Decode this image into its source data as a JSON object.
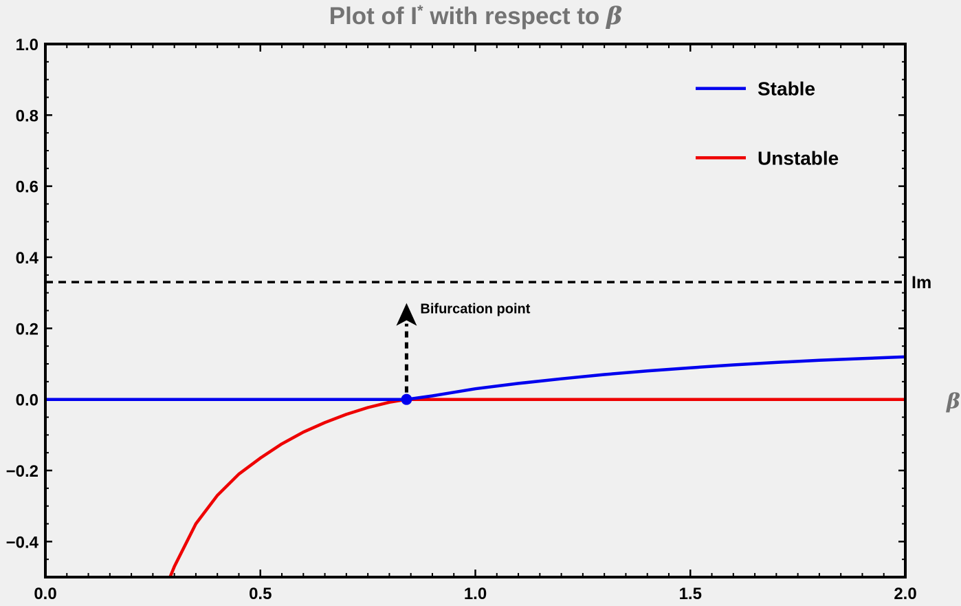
{
  "chart_data": {
    "type": "line",
    "title_prefix": "Plot of I",
    "title_sup": "*",
    "title_suffix": " with respect to ",
    "title_symbol": "β",
    "xlabel": "β",
    "ylabel": "",
    "xlim": [
      0,
      2
    ],
    "ylim": [
      -0.5,
      1
    ],
    "x_ticks": [
      0,
      0.5,
      1,
      1.5,
      2
    ],
    "x_tick_labels": [
      "0.0",
      "0.5",
      "1.0",
      "1.5",
      "2.0"
    ],
    "y_ticks": [
      -0.4,
      -0.2,
      0,
      0.2,
      0.4,
      0.6,
      0.8,
      1.0
    ],
    "y_tick_labels": [
      "−0.4",
      "−0.2",
      "0.0",
      "0.2",
      "0.4",
      "0.6",
      "0.8",
      "1.0"
    ],
    "grid": false,
    "legend_position": "top-right",
    "series": [
      {
        "name": "Stable",
        "color": "#0000ee",
        "x": [
          0,
          0.5,
          0.84,
          0.9,
          1.0,
          1.1,
          1.2,
          1.3,
          1.4,
          1.5,
          1.6,
          1.7,
          1.8,
          1.9,
          2.0
        ],
        "y": [
          0,
          0,
          0,
          0.01,
          0.03,
          0.045,
          0.058,
          0.07,
          0.08,
          0.089,
          0.097,
          0.104,
          0.11,
          0.115,
          0.12
        ]
      },
      {
        "name": "Unstable",
        "color": "#ee0000",
        "x": [
          0.29,
          0.3,
          0.35,
          0.4,
          0.45,
          0.5,
          0.55,
          0.6,
          0.65,
          0.7,
          0.75,
          0.8,
          0.84,
          1.0,
          1.5,
          2.0
        ],
        "y": [
          -0.5,
          -0.47,
          -0.35,
          -0.27,
          -0.21,
          -0.165,
          -0.125,
          -0.092,
          -0.065,
          -0.042,
          -0.023,
          -0.008,
          0,
          0,
          0,
          0
        ]
      }
    ],
    "reference_line": {
      "label": "Im",
      "y": 0.33,
      "style": "dashed",
      "color": "#000000"
    },
    "bifurcation_point": {
      "x": 0.84,
      "y": 0,
      "color": "#0000ee"
    },
    "annotation": {
      "text": "Bifurcation point",
      "arrow_from": [
        0.84,
        0
      ],
      "arrow_to": [
        0.84,
        0.3
      ]
    }
  }
}
